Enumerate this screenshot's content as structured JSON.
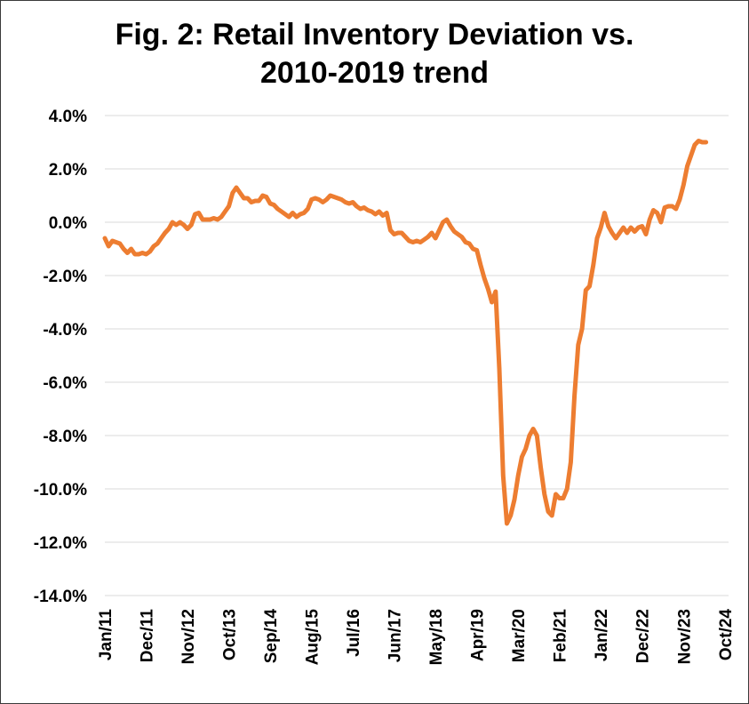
{
  "chart_data": {
    "type": "line",
    "title": [
      "Fig. 2: Retail Inventory Deviation vs.",
      "2010-2019 trend"
    ],
    "xlabel": "",
    "ylabel": "",
    "ylim": [
      -14,
      4
    ],
    "y_ticks": [
      {
        "value": 4,
        "label": "4.0%"
      },
      {
        "value": 2,
        "label": "2.0%"
      },
      {
        "value": 0,
        "label": "0.0%"
      },
      {
        "value": -2,
        "label": "-2.0%"
      },
      {
        "value": -4,
        "label": "-4.0%"
      },
      {
        "value": -6,
        "label": "-6.0%"
      },
      {
        "value": -8,
        "label": "-8.0%"
      },
      {
        "value": -10,
        "label": "-10.0%"
      },
      {
        "value": -12,
        "label": "-12.0%"
      },
      {
        "value": -14,
        "label": "-14.0%"
      }
    ],
    "x_ticks": [
      "Jan/11",
      "Dec/11",
      "Nov/12",
      "Oct/13",
      "Sep/14",
      "Aug/15",
      "Jul/16",
      "Jun/17",
      "May/18",
      "Apr/19",
      "Mar/20",
      "Feb/21",
      "Jan/22",
      "Dec/22",
      "Nov/23",
      "Oct/24"
    ],
    "x_start": "2011-01",
    "x_end": "2024-11",
    "grid": true,
    "legend": "none",
    "series": [
      {
        "color": "#ED7D31",
        "points": [
          [
            "2011-01",
            -0.6
          ],
          [
            "2011-02",
            -0.9
          ],
          [
            "2011-03",
            -0.7
          ],
          [
            "2011-04",
            -0.75
          ],
          [
            "2011-05",
            -0.8
          ],
          [
            "2011-06",
            -1.0
          ],
          [
            "2011-07",
            -1.15
          ],
          [
            "2011-08",
            -1.0
          ],
          [
            "2011-09",
            -1.2
          ],
          [
            "2011-10",
            -1.2
          ],
          [
            "2011-11",
            -1.15
          ],
          [
            "2011-12",
            -1.2
          ],
          [
            "2012-01",
            -1.1
          ],
          [
            "2012-02",
            -0.9
          ],
          [
            "2012-03",
            -0.8
          ],
          [
            "2012-04",
            -0.6
          ],
          [
            "2012-05",
            -0.4
          ],
          [
            "2012-06",
            -0.25
          ],
          [
            "2012-07",
            0.0
          ],
          [
            "2012-08",
            -0.1
          ],
          [
            "2012-09",
            0.0
          ],
          [
            "2012-10",
            -0.1
          ],
          [
            "2012-11",
            -0.25
          ],
          [
            "2012-12",
            -0.1
          ],
          [
            "2013-01",
            0.3
          ],
          [
            "2013-02",
            0.35
          ],
          [
            "2013-03",
            0.1
          ],
          [
            "2013-04",
            0.1
          ],
          [
            "2013-05",
            0.1
          ],
          [
            "2013-06",
            0.15
          ],
          [
            "2013-07",
            0.1
          ],
          [
            "2013-08",
            0.2
          ],
          [
            "2013-09",
            0.4
          ],
          [
            "2013-10",
            0.6
          ],
          [
            "2013-11",
            1.1
          ],
          [
            "2013-12",
            1.3
          ],
          [
            "2014-01",
            1.1
          ],
          [
            "2014-02",
            0.9
          ],
          [
            "2014-03",
            0.9
          ],
          [
            "2014-04",
            0.75
          ],
          [
            "2014-05",
            0.8
          ],
          [
            "2014-06",
            0.8
          ],
          [
            "2014-07",
            1.0
          ],
          [
            "2014-08",
            0.95
          ],
          [
            "2014-09",
            0.7
          ],
          [
            "2014-10",
            0.65
          ],
          [
            "2014-11",
            0.5
          ],
          [
            "2014-12",
            0.4
          ],
          [
            "2015-01",
            0.3
          ],
          [
            "2015-02",
            0.2
          ],
          [
            "2015-03",
            0.35
          ],
          [
            "2015-04",
            0.2
          ],
          [
            "2015-05",
            0.3
          ],
          [
            "2015-06",
            0.35
          ],
          [
            "2015-07",
            0.5
          ],
          [
            "2015-08",
            0.85
          ],
          [
            "2015-09",
            0.9
          ],
          [
            "2015-10",
            0.85
          ],
          [
            "2015-11",
            0.75
          ],
          [
            "2015-12",
            0.85
          ],
          [
            "2016-01",
            1.0
          ],
          [
            "2016-02",
            0.95
          ],
          [
            "2016-03",
            0.9
          ],
          [
            "2016-04",
            0.85
          ],
          [
            "2016-05",
            0.75
          ],
          [
            "2016-06",
            0.7
          ],
          [
            "2016-07",
            0.75
          ],
          [
            "2016-08",
            0.6
          ],
          [
            "2016-09",
            0.5
          ],
          [
            "2016-10",
            0.55
          ],
          [
            "2016-11",
            0.45
          ],
          [
            "2016-12",
            0.4
          ],
          [
            "2017-01",
            0.3
          ],
          [
            "2017-02",
            0.4
          ],
          [
            "2017-03",
            0.25
          ],
          [
            "2017-04",
            0.35
          ],
          [
            "2017-05",
            -0.3
          ],
          [
            "2017-06",
            -0.45
          ],
          [
            "2017-07",
            -0.4
          ],
          [
            "2017-08",
            -0.4
          ],
          [
            "2017-09",
            -0.55
          ],
          [
            "2017-10",
            -0.7
          ],
          [
            "2017-11",
            -0.75
          ],
          [
            "2017-12",
            -0.7
          ],
          [
            "2018-01",
            -0.75
          ],
          [
            "2018-02",
            -0.65
          ],
          [
            "2018-03",
            -0.55
          ],
          [
            "2018-04",
            -0.4
          ],
          [
            "2018-05",
            -0.6
          ],
          [
            "2018-06",
            -0.3
          ],
          [
            "2018-07",
            0.0
          ],
          [
            "2018-08",
            0.1
          ],
          [
            "2018-09",
            -0.15
          ],
          [
            "2018-10",
            -0.35
          ],
          [
            "2018-11",
            -0.45
          ],
          [
            "2018-12",
            -0.55
          ],
          [
            "2019-01",
            -0.75
          ],
          [
            "2019-02",
            -0.8
          ],
          [
            "2019-03",
            -1.0
          ],
          [
            "2019-04",
            -1.05
          ],
          [
            "2019-05",
            -1.6
          ],
          [
            "2019-06",
            -2.1
          ],
          [
            "2019-07",
            -2.5
          ],
          [
            "2019-08",
            -3.0
          ],
          [
            "2019-09",
            -2.6
          ],
          [
            "2019-10",
            -5.5
          ],
          [
            "2019-11",
            -9.5
          ],
          [
            "2019-12",
            -11.3
          ],
          [
            "2020-01",
            -11.0
          ],
          [
            "2020-02",
            -10.4
          ],
          [
            "2020-03",
            -9.5
          ],
          [
            "2020-04",
            -8.8
          ],
          [
            "2020-05",
            -8.5
          ],
          [
            "2020-06",
            -8.0
          ],
          [
            "2020-07",
            -7.75
          ],
          [
            "2020-08",
            -8.0
          ],
          [
            "2020-09",
            -9.2
          ],
          [
            "2020-10",
            -10.2
          ],
          [
            "2020-11",
            -10.85
          ],
          [
            "2020-12",
            -11.0
          ],
          [
            "2021-01",
            -10.2
          ],
          [
            "2021-02",
            -10.35
          ],
          [
            "2021-03",
            -10.35
          ],
          [
            "2021-04",
            -10.0
          ],
          [
            "2021-05",
            -9.0
          ],
          [
            "2021-06",
            -6.5
          ],
          [
            "2021-07",
            -4.6
          ],
          [
            "2021-08",
            -4.0
          ],
          [
            "2021-09",
            -2.55
          ],
          [
            "2021-10",
            -2.4
          ],
          [
            "2021-11",
            -1.6
          ],
          [
            "2021-12",
            -0.6
          ],
          [
            "2022-01",
            -0.2
          ],
          [
            "2022-02",
            0.35
          ],
          [
            "2022-03",
            -0.15
          ],
          [
            "2022-04",
            -0.4
          ],
          [
            "2022-05",
            -0.6
          ],
          [
            "2022-06",
            -0.4
          ],
          [
            "2022-07",
            -0.2
          ],
          [
            "2022-08",
            -0.4
          ],
          [
            "2022-09",
            -0.2
          ],
          [
            "2022-10",
            -0.35
          ],
          [
            "2022-11",
            -0.2
          ],
          [
            "2022-12",
            -0.15
          ],
          [
            "2023-01",
            -0.45
          ],
          [
            "2023-02",
            0.1
          ],
          [
            "2023-03",
            0.45
          ],
          [
            "2023-04",
            0.35
          ],
          [
            "2023-05",
            0.0
          ],
          [
            "2023-06",
            0.55
          ],
          [
            "2023-07",
            0.6
          ],
          [
            "2023-08",
            0.6
          ],
          [
            "2023-09",
            0.5
          ],
          [
            "2023-10",
            0.85
          ],
          [
            "2023-11",
            1.4
          ],
          [
            "2023-12",
            2.1
          ],
          [
            "2024-01",
            2.5
          ],
          [
            "2024-02",
            2.9
          ],
          [
            "2024-03",
            3.05
          ],
          [
            "2024-04",
            3.0
          ],
          [
            "2024-05",
            3.0
          ]
        ]
      }
    ]
  }
}
